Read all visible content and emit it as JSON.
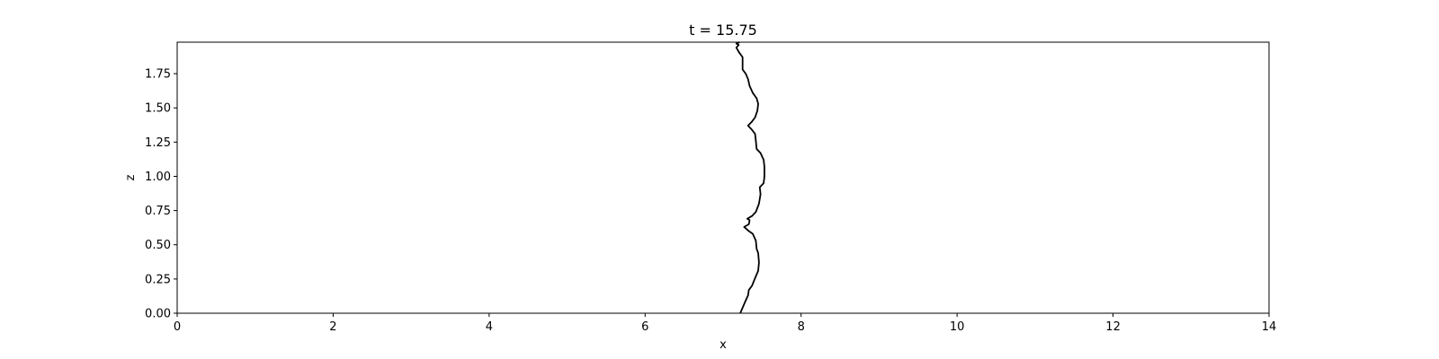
{
  "chart_data": {
    "type": "line",
    "title": "t = 15.75",
    "xlabel": "x",
    "ylabel": "z",
    "xlim": [
      0,
      14
    ],
    "ylim": [
      0,
      1.98
    ],
    "x_ticks": [
      0,
      2,
      4,
      6,
      8,
      10,
      12,
      14
    ],
    "x_tick_labels": [
      "0",
      "2",
      "4",
      "6",
      "8",
      "10",
      "12",
      "14"
    ],
    "y_ticks": [
      0.0,
      0.25,
      0.5,
      0.75,
      1.0,
      1.25,
      1.5,
      1.75
    ],
    "y_tick_labels": [
      "0.00",
      "0.25",
      "0.50",
      "0.75",
      "1.00",
      "1.25",
      "1.50",
      "1.75"
    ],
    "grid": false,
    "legend": "none",
    "series": [
      {
        "color": "#000000",
        "points": [
          [
            7.22,
            0.0
          ],
          [
            7.28,
            0.08
          ],
          [
            7.32,
            0.13
          ],
          [
            7.33,
            0.17
          ],
          [
            7.37,
            0.2
          ],
          [
            7.42,
            0.27
          ],
          [
            7.45,
            0.31
          ],
          [
            7.46,
            0.37
          ],
          [
            7.45,
            0.44
          ],
          [
            7.43,
            0.47
          ],
          [
            7.42,
            0.53
          ],
          [
            7.38,
            0.58
          ],
          [
            7.33,
            0.6
          ],
          [
            7.27,
            0.63
          ],
          [
            7.33,
            0.65
          ],
          [
            7.34,
            0.68
          ],
          [
            7.31,
            0.69
          ],
          [
            7.37,
            0.71
          ],
          [
            7.42,
            0.74
          ],
          [
            7.46,
            0.8
          ],
          [
            7.48,
            0.87
          ],
          [
            7.47,
            0.92
          ],
          [
            7.52,
            0.95
          ],
          [
            7.53,
            1.0
          ],
          [
            7.53,
            1.07
          ],
          [
            7.52,
            1.12
          ],
          [
            7.48,
            1.17
          ],
          [
            7.43,
            1.2
          ],
          [
            7.42,
            1.26
          ],
          [
            7.41,
            1.31
          ],
          [
            7.37,
            1.34
          ],
          [
            7.32,
            1.37
          ],
          [
            7.37,
            1.4
          ],
          [
            7.41,
            1.43
          ],
          [
            7.44,
            1.48
          ],
          [
            7.45,
            1.53
          ],
          [
            7.43,
            1.57
          ],
          [
            7.38,
            1.61
          ],
          [
            7.34,
            1.66
          ],
          [
            7.32,
            1.71
          ],
          [
            7.29,
            1.75
          ],
          [
            7.25,
            1.78
          ],
          [
            7.25,
            1.82
          ],
          [
            7.25,
            1.87
          ],
          [
            7.2,
            1.91
          ],
          [
            7.17,
            1.94
          ],
          [
            7.2,
            1.96
          ],
          [
            7.17,
            1.97
          ],
          [
            7.21,
            1.98
          ]
        ]
      }
    ]
  }
}
